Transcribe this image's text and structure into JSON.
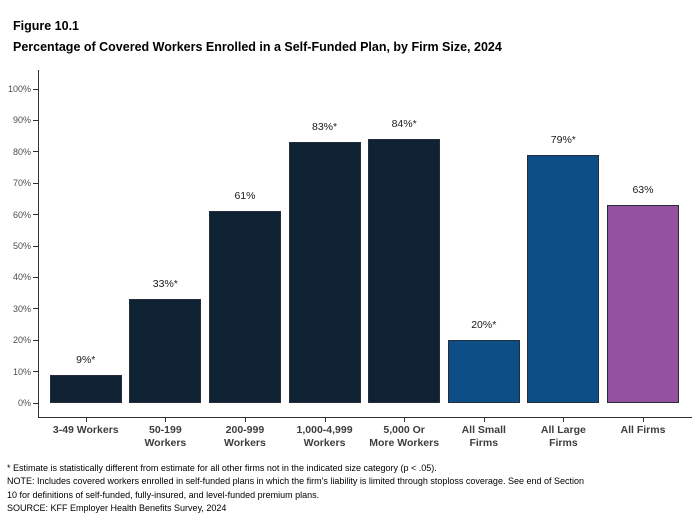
{
  "figure": {
    "label": "Figure 10.1",
    "title": "Percentage of Covered Workers Enrolled in a Self-Funded Plan, by Firm Size, 2024"
  },
  "chart_data": {
    "type": "bar",
    "title": "Percentage of Covered Workers Enrolled in a Self-Funded Plan, by Firm Size, 2024",
    "categories": [
      "3-49 Workers",
      "50-199 Workers",
      "200-999 Workers",
      "1,000-4,999 Workers",
      "5,000 Or More Workers",
      "All Small Firms",
      "All Large Firms",
      "All Firms"
    ],
    "tick_display": [
      "3-49 Workers",
      "50-199\nWorkers",
      "200-999\nWorkers",
      "1,000-4,999\nWorkers",
      "5,000 Or\nMore Workers",
      "All Small\nFirms",
      "All Large\nFirms",
      "All Firms"
    ],
    "values": [
      9,
      33,
      61,
      83,
      84,
      20,
      79,
      63
    ],
    "value_labels": [
      "9%*",
      "33%*",
      "61%",
      "83%*",
      "84%*",
      "20%*",
      "79%*",
      "63%"
    ],
    "bar_colors": [
      "#0E2234",
      "#0E2234",
      "#0E2234",
      "#0E2234",
      "#0E2234",
      "#0E4E87",
      "#0E4E87",
      "#94519F"
    ],
    "xlabel": "",
    "ylabel": "",
    "ylim": [
      0,
      100
    ],
    "y_tick_labels": [
      "0%",
      "10%",
      "20%",
      "30%",
      "40%",
      "50%",
      "60%",
      "70%",
      "80%",
      "90%",
      "100%"
    ],
    "grid": false,
    "legend": "none"
  },
  "colors": {
    "navy": "#0E2234",
    "blue": "#0E4E87",
    "purple": "#94519F",
    "axis": "#333333",
    "y_tick_label": "#4D4D4D",
    "category_label": "#3D3D3D",
    "value_label": "#1A1A1A"
  },
  "footnotes": [
    "* Estimate is statistically different from estimate for all other firms not in the indicated size category (p < .05).",
    "NOTE: Includes covered workers enrolled in self-funded plans in which the firm's liability is limited through stoploss coverage. See end of Section",
    "10 for definitions of self-funded, fully-insured, and level-funded premium plans.",
    "SOURCE: KFF Employer Health Benefits Survey, 2024"
  ]
}
